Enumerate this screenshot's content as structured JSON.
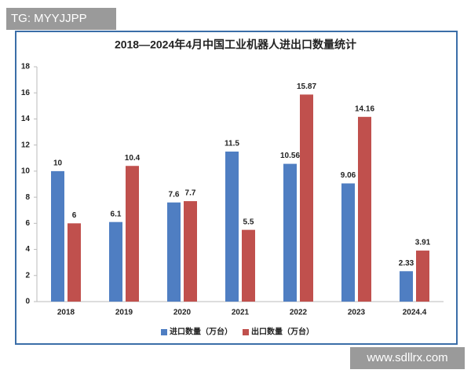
{
  "watermarks": {
    "top_left": "TG: MYYJJPP",
    "bottom_right": "www.sdllrx.com"
  },
  "chart_data": {
    "type": "bar",
    "title": "2018—2024年4月中国工业机器人进出口数量统计",
    "categories": [
      "2018",
      "2019",
      "2020",
      "2021",
      "2022",
      "2023",
      "2024.4"
    ],
    "series": [
      {
        "name": "进口数量（万台）",
        "color": "#4f7ec2",
        "values": [
          10,
          6.1,
          7.6,
          11.5,
          10.56,
          9.06,
          2.33
        ]
      },
      {
        "name": "出口数量（万台）",
        "color": "#c0504d",
        "values": [
          6,
          10.4,
          7.7,
          5.5,
          15.87,
          14.16,
          3.91
        ]
      }
    ],
    "ylim": [
      0,
      18
    ],
    "yticks": [
      0,
      2,
      4,
      6,
      8,
      10,
      12,
      14,
      16,
      18
    ],
    "grid": false,
    "legend": "bottom"
  }
}
